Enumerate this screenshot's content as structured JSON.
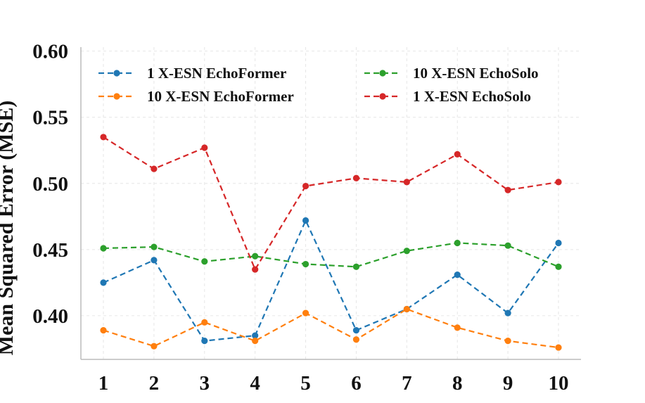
{
  "chart_data": {
    "type": "line",
    "title": "",
    "xlabel": "",
    "ylabel": "Mean Squared Error (MSE)",
    "x": [
      1,
      2,
      3,
      4,
      5,
      6,
      7,
      8,
      9,
      10
    ],
    "x_tick_labels": [
      "1",
      "2",
      "3",
      "4",
      "5",
      "6",
      "7",
      "8",
      "9",
      "10"
    ],
    "ylim": [
      0.367,
      0.603
    ],
    "y_ticks": [
      0.4,
      0.45,
      0.5,
      0.55,
      0.6
    ],
    "y_tick_labels": [
      "0.40",
      "0.45",
      "0.50",
      "0.55",
      "0.60"
    ],
    "grid": true,
    "legend_position": "top",
    "series": [
      {
        "name": "1 X-ESN EchoFormer",
        "color": "#1f77b4",
        "values": [
          0.425,
          0.442,
          0.381,
          0.385,
          0.472,
          0.389,
          0.405,
          0.431,
          0.402,
          0.455
        ]
      },
      {
        "name": "10 X-ESN EchoFormer",
        "color": "#ff7f0e",
        "values": [
          0.389,
          0.377,
          0.395,
          0.381,
          0.402,
          0.382,
          0.405,
          0.391,
          0.381,
          0.376
        ]
      },
      {
        "name": "10 X-ESN EchoSolo",
        "color": "#2ca02c",
        "values": [
          0.451,
          0.452,
          0.441,
          0.445,
          0.439,
          0.437,
          0.449,
          0.455,
          0.453,
          0.437
        ]
      },
      {
        "name": "1 X-ESN EchoSolo",
        "color": "#d62728",
        "values": [
          0.535,
          0.511,
          0.527,
          0.435,
          0.498,
          0.504,
          0.501,
          0.522,
          0.495,
          0.501
        ]
      }
    ]
  }
}
